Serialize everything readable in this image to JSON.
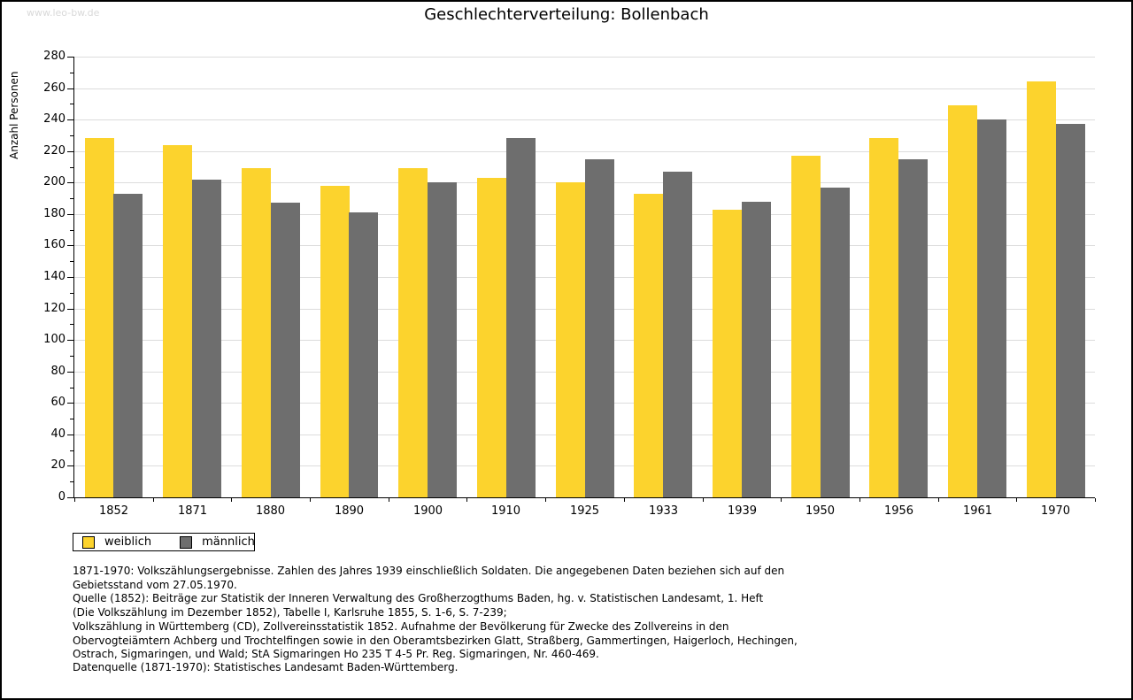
{
  "watermark": "www.leo-bw.de",
  "title": "Geschlechterverteilung: Bollenbach",
  "chart_data": {
    "type": "bar",
    "title": "Geschlechterverteilung: Bollenbach",
    "xlabel": "",
    "ylabel": "Anzahl Personen",
    "categories": [
      "1852",
      "1871",
      "1880",
      "1890",
      "1900",
      "1910",
      "1925",
      "1933",
      "1939",
      "1950",
      "1956",
      "1961",
      "1970"
    ],
    "series": [
      {
        "name": "weiblich",
        "color": "#FCD32D",
        "values": [
          228,
          224,
          209,
          198,
          209,
          203,
          200,
          193,
          183,
          217,
          228,
          249,
          264
        ]
      },
      {
        "name": "männlich",
        "color": "#6E6E6E",
        "values": [
          193,
          202,
          187,
          181,
          200,
          228,
          215,
          207,
          188,
          197,
          215,
          240,
          237
        ]
      }
    ],
    "ylim": [
      0,
      280
    ],
    "ytick_step": 20,
    "yminor_step": 10,
    "grid": true,
    "gridline_color": "#dcdcdc",
    "legend_position": "bottom-left"
  },
  "footer": {
    "lines": [
      "1871-1970: Volkszählungsergebnisse. Zahlen des Jahres 1939 einschließlich Soldaten. Die angegebenen Daten beziehen sich auf den",
      "Gebietsstand vom 27.05.1970.",
      "Quelle (1852): Beiträge zur Statistik der Inneren Verwaltung des Großherzogthums Baden, hg. v. Statistischen Landesamt, 1. Heft",
      "(Die Volkszählung im Dezember 1852), Tabelle I, Karlsruhe 1855, S. 1-6, S. 7-239;",
      "Volkszählung in Württemberg (CD), Zollvereinsstatistik 1852. Aufnahme der Bevölkerung für Zwecke des Zollvereins in den",
      "Obervogteiämtern Achberg und Trochtelfingen sowie in den Oberamtsbezirken Glatt, Straßberg, Gammertingen, Haigerloch, Hechingen,",
      "Ostrach, Sigmaringen, und Wald; StA Sigmaringen Ho 235 T 4-5 Pr. Reg. Sigmaringen, Nr. 460-469."
    ],
    "datenquelle": "Datenquelle (1871-1970): Statistisches Landesamt Baden-Württemberg."
  }
}
